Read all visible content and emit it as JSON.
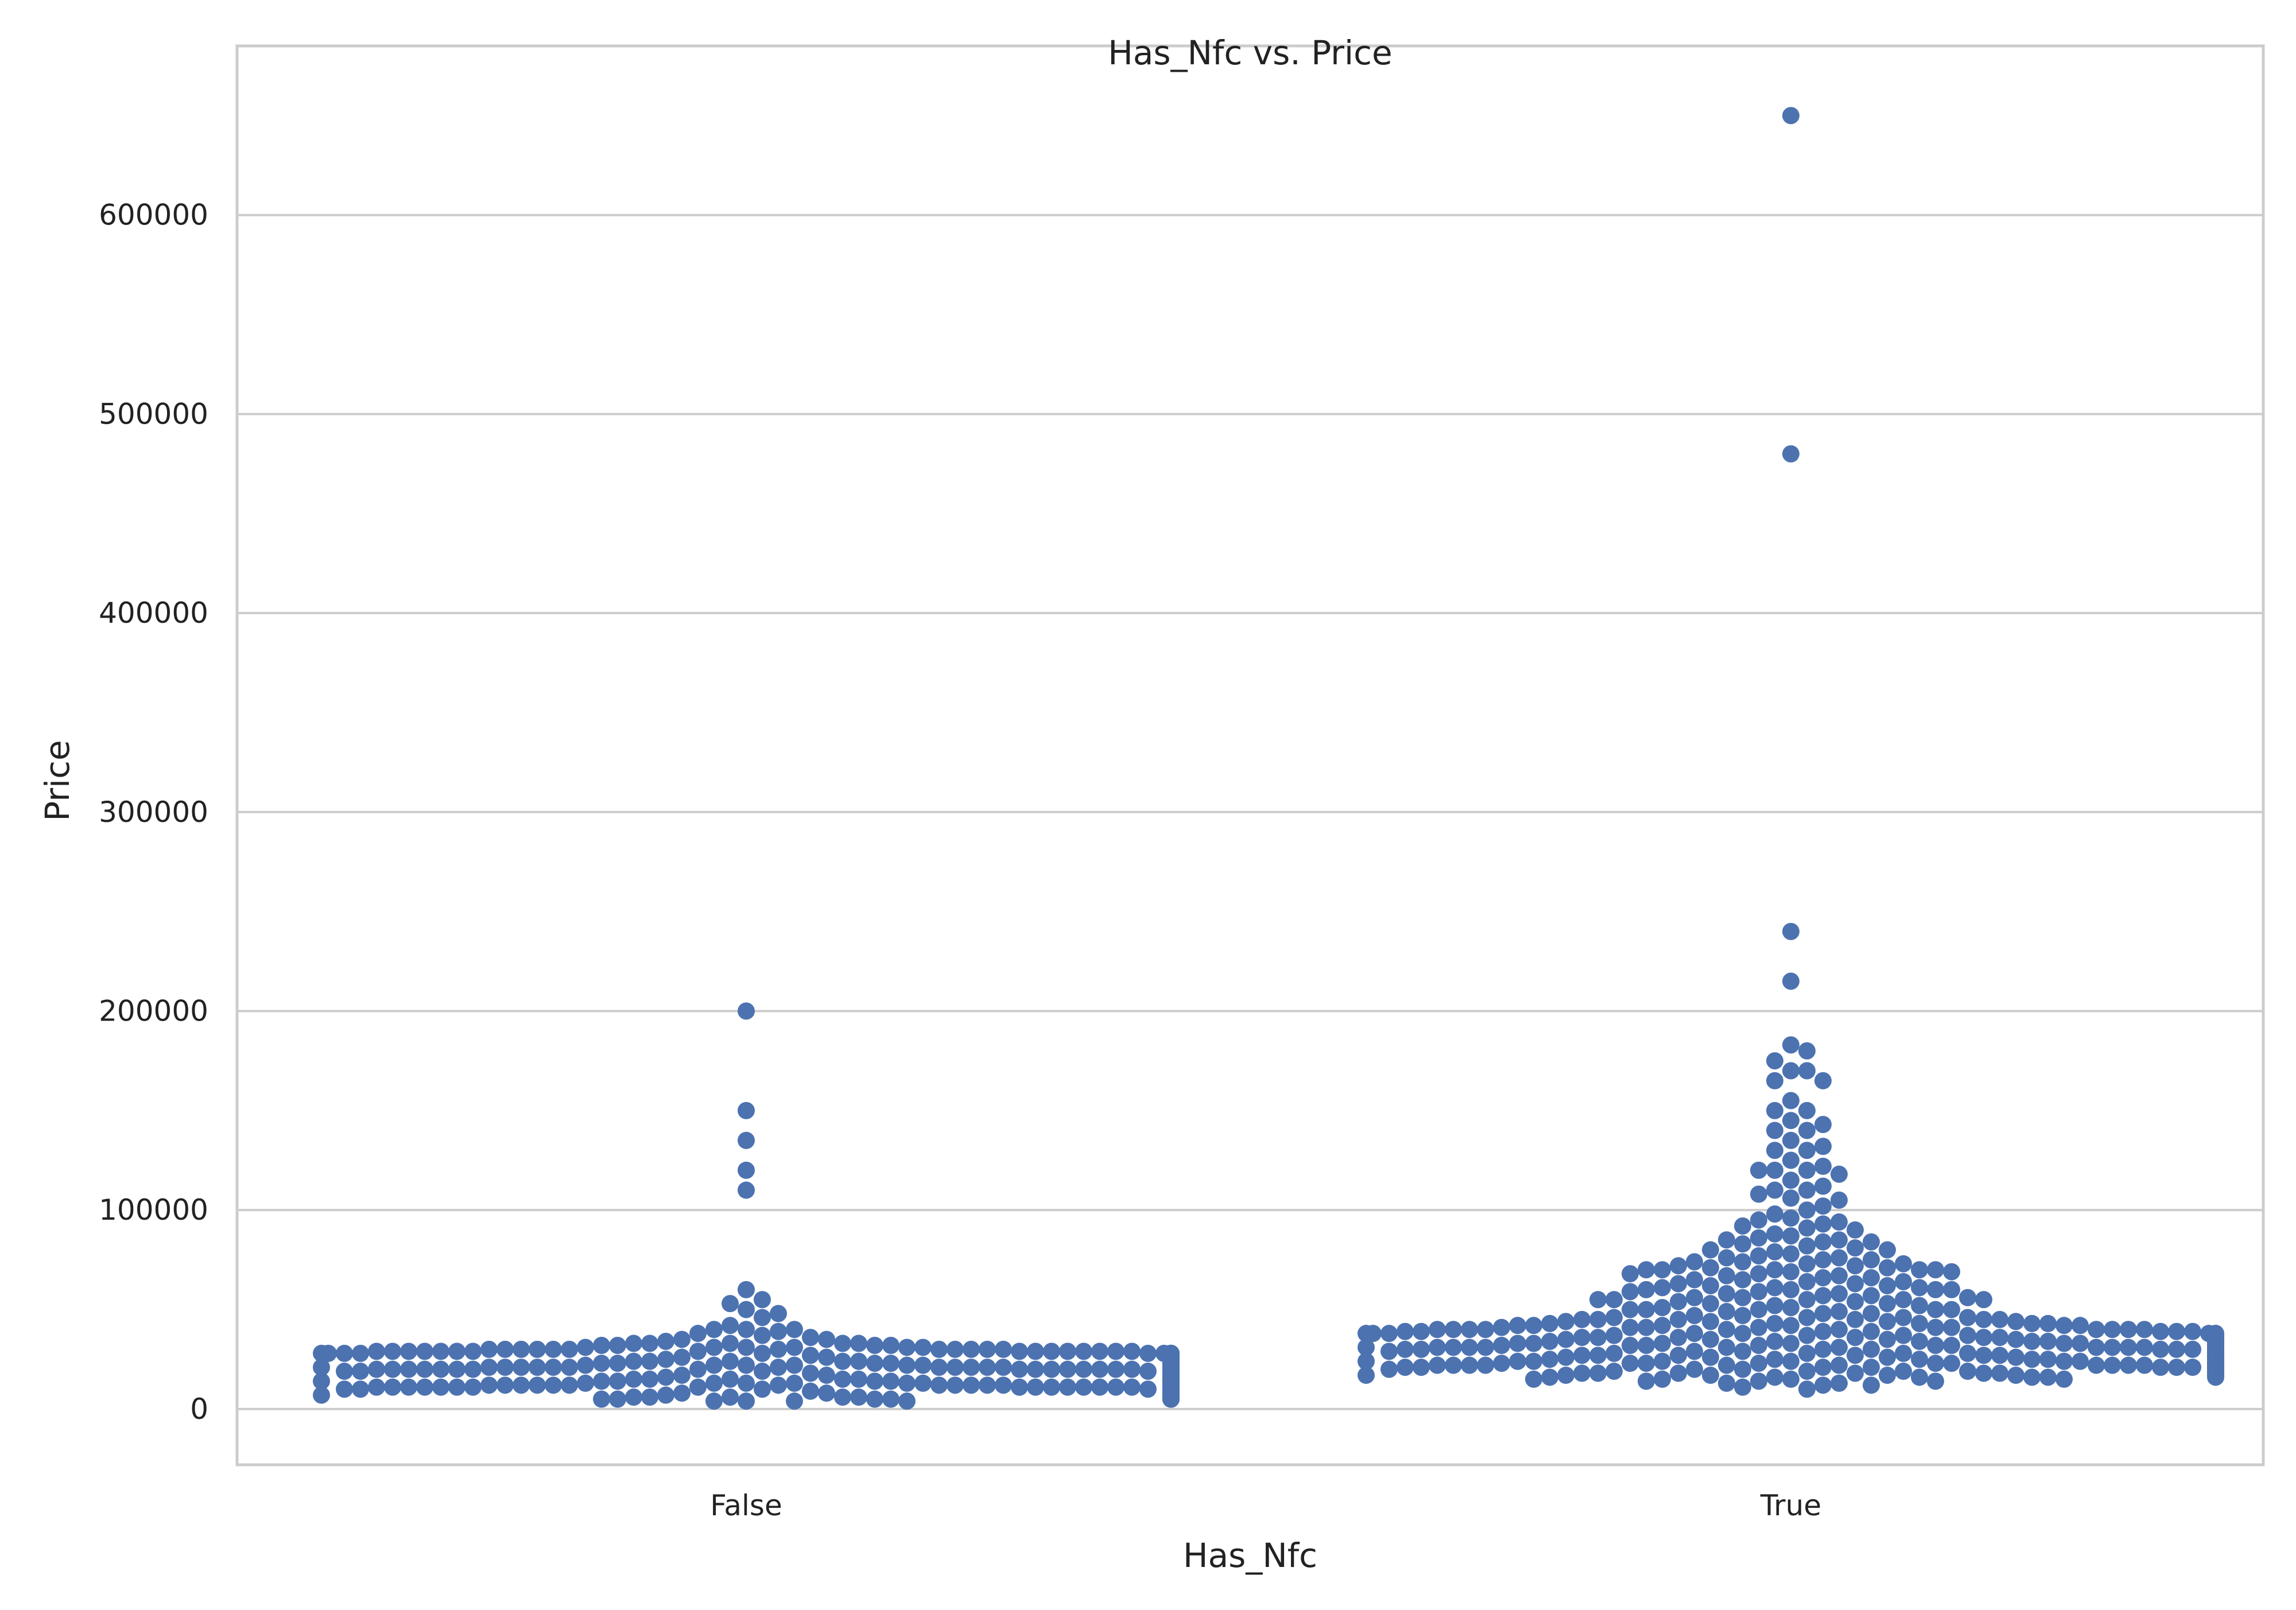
{
  "chart_data": {
    "type": "scatter",
    "subtype": "swarm",
    "title": "Has_Nfc vs. Price",
    "xlabel": "Has_Nfc",
    "ylabel": "Price",
    "categories": [
      "False",
      "True"
    ],
    "ylim": [
      -28000,
      685000
    ],
    "yticks": [
      0,
      100000,
      200000,
      300000,
      400000,
      500000,
      600000
    ],
    "ytick_labels": [
      "0",
      "100000",
      "200000",
      "300000",
      "400000",
      "500000",
      "600000"
    ],
    "grid": "horizontal",
    "legend": "none",
    "marker_color": "#4c72b0",
    "series": [
      {
        "category": "False",
        "values": [
          200000,
          150000,
          135000,
          120000,
          110000,
          60000,
          55000,
          53000,
          50000,
          48000,
          46000,
          42000,
          40000,
          40000,
          40000,
          39000,
          38000,
          37000,
          36000,
          35000,
          35000,
          34000,
          33000,
          33000,
          33000,
          33000,
          33000,
          32000,
          32000,
          32000,
          32000,
          31000,
          31000,
          31000,
          31000,
          31000,
          31000,
          30000,
          30000,
          30000,
          30000,
          30000,
          30000,
          30000,
          30000,
          30000,
          30000,
          30000,
          30000,
          29000,
          29000,
          29000,
          29000,
          29000,
          29000,
          29000,
          29000,
          29000,
          29000,
          29000,
          29000,
          29000,
          29000,
          29000,
          29000,
          28000,
          28000,
          28000,
          28000,
          28000,
          28000,
          28000,
          28000,
          28000,
          28000,
          28000,
          28000,
          28000,
          28000,
          28000,
          28000,
          27000,
          27000,
          27000,
          27000,
          27000,
          27000,
          27000,
          27000,
          27000,
          27000,
          27000,
          27000,
          27000,
          27000,
          27000,
          27000,
          26000,
          26000,
          26000,
          26000,
          26000,
          26000,
          26000,
          26000,
          26000,
          26000,
          26000,
          26000,
          26000,
          26000,
          26000,
          26000,
          25000,
          25000,
          25000,
          25000,
          25000,
          25000,
          25000,
          25000,
          25000,
          25000,
          25000,
          25000,
          25000,
          25000,
          25000,
          25000,
          24000,
          24000,
          24000,
          24000,
          24000,
          24000,
          24000,
          24000,
          24000,
          24000,
          24000,
          24000,
          24000,
          24000,
          24000,
          24000,
          23000,
          23000,
          23000,
          23000,
          23000,
          23000,
          23000,
          23000,
          23000,
          23000,
          23000,
          23000,
          23000,
          23000,
          23000,
          23000,
          22000,
          22000,
          22000,
          22000,
          22000,
          22000,
          22000,
          22000,
          22000,
          22000,
          22000,
          22000,
          22000,
          22000,
          22000,
          22000,
          21000,
          21000,
          21000,
          21000,
          21000,
          21000,
          21000,
          21000,
          21000,
          21000,
          21000,
          21000,
          21000,
          21000,
          21000,
          21000,
          20000,
          20000,
          20000,
          20000,
          20000,
          20000,
          20000,
          20000,
          20000,
          20000,
          20000,
          20000,
          20000,
          20000,
          20000,
          20000,
          19000,
          19000,
          19000,
          19000,
          19000,
          19000,
          19000,
          19000,
          19000,
          19000,
          19000,
          19000,
          19000,
          19000,
          19000,
          19000,
          18000,
          18000,
          18000,
          18000,
          18000,
          18000,
          18000,
          18000,
          18000,
          18000,
          18000,
          18000,
          18000,
          18000,
          18000,
          18000,
          17000,
          17000,
          17000,
          17000,
          17000,
          17000,
          17000,
          17000,
          17000,
          17000,
          17000,
          17000,
          17000,
          17000,
          17000,
          17000,
          16000,
          16000,
          16000,
          16000,
          16000,
          16000,
          16000,
          16000,
          16000,
          16000,
          16000,
          16000,
          16000,
          16000,
          16000,
          16000,
          15000,
          15000,
          15000,
          15000,
          15000,
          15000,
          15000,
          15000,
          15000,
          15000,
          15000,
          15000,
          15000,
          15000,
          15000,
          15000,
          14000,
          14000,
          14000,
          14000,
          14000,
          14000,
          14000,
          14000,
          14000,
          14000,
          14000,
          14000,
          14000,
          14000,
          14000,
          14000,
          13000,
          13000,
          13000,
          13000,
          13000,
          13000,
          13000,
          13000,
          13000,
          13000,
          13000,
          13000,
          13000,
          13000,
          13000,
          13000,
          12000,
          12000,
          12000,
          12000,
          12000,
          12000,
          12000,
          12000,
          12000,
          12000,
          12000,
          12000,
          12000,
          12000,
          12000,
          12000,
          11000,
          11000,
          11000,
          11000,
          11000,
          11000,
          11000,
          11000,
          11000,
          11000,
          11000,
          11000,
          11000,
          11000,
          11000,
          11000,
          10000,
          10000,
          10000,
          10000,
          10000,
          10000,
          10000,
          10000,
          10000,
          10000,
          10000,
          10000,
          10000,
          10000,
          10000,
          10000,
          9000,
          9000,
          9000,
          9000,
          9000,
          9000,
          9000,
          9000,
          9000,
          9000,
          9000,
          9000,
          9000,
          9000,
          9000,
          9000,
          8000,
          8000,
          8000,
          8000,
          8000,
          8000,
          8000,
          8000,
          8000,
          8000,
          8000,
          8000,
          8000,
          8000,
          8000,
          8000,
          7000,
          7000,
          7000,
          7000,
          7000,
          7000,
          7000,
          7000,
          7000,
          7000,
          7000,
          7000,
          7000,
          7000,
          7000,
          7000,
          6000,
          6000,
          6000,
          6000,
          6000,
          6000,
          6000,
          6000,
          6000,
          6000,
          6000,
          6000,
          5000,
          5000,
          5000,
          5000,
          5000,
          5000,
          5000,
          5000,
          4000,
          4000,
          4000,
          4000
        ]
      },
      {
        "category": "True",
        "values": [
          650000,
          480000,
          240000,
          215000,
          183000,
          180000,
          175000,
          170000,
          170000,
          165000,
          165000,
          155000,
          150000,
          150000,
          145000,
          143000,
          140000,
          140000,
          135000,
          132000,
          130000,
          130000,
          125000,
          122000,
          120000,
          120000,
          120000,
          118000,
          115000,
          112000,
          110000,
          110000,
          108000,
          106000,
          105000,
          102000,
          100000,
          98000,
          96000,
          95000,
          94000,
          93000,
          92000,
          91000,
          90000,
          88000,
          87000,
          86000,
          85000,
          85000,
          84000,
          84000,
          83000,
          82000,
          81000,
          80000,
          80000,
          79000,
          78000,
          77000,
          76000,
          76000,
          75000,
          75000,
          74000,
          74000,
          73000,
          73000,
          72000,
          72000,
          71000,
          71000,
          70000,
          70000,
          70000,
          70000,
          70000,
          69000,
          69000,
          68000,
          68000,
          67000,
          67000,
          66000,
          66000,
          65000,
          65000,
          64000,
          64000,
          63000,
          63000,
          62000,
          62000,
          61000,
          61000,
          61000,
          60000,
          60000,
          60000,
          60000,
          59000,
          59000,
          58000,
          58000,
          57000,
          57000,
          56000,
          56000,
          56000,
          55000,
          55000,
          55000,
          55000,
          55000,
          54000,
          54000,
          53000,
          53000,
          52000,
          52000,
          51000,
          51000,
          50000,
          50000,
          50000,
          50000,
          50000,
          49000,
          49000,
          48000,
          48000,
          47000,
          47000,
          46000,
          46000,
          46000,
          46000,
          45000,
          45000,
          45000,
          45000,
          45000,
          45000,
          44000,
          44000,
          44000,
          44000,
          43000,
          43000,
          43000,
          43000,
          43000,
          42000,
          42000,
          42000,
          42000,
          42000,
          42000,
          41000,
          41000,
          41000,
          41000,
          41000,
          41000,
          40000,
          40000,
          40000,
          40000,
          40000,
          40000,
          40000,
          40000,
          40000,
          40000,
          39000,
          39000,
          39000,
          39000,
          39000,
          39000,
          39000,
          38000,
          38000,
          38000,
          38000,
          38000,
          38000,
          38000,
          38000,
          37000,
          37000,
          37000,
          37000,
          37000,
          37000,
          37000,
          37000,
          36000,
          36000,
          36000,
          36000,
          36000,
          36000,
          36000,
          36000,
          36000,
          35000,
          35000,
          35000,
          35000,
          35000,
          35000,
          35000,
          35000,
          35000,
          35000,
          35000,
          34000,
          34000,
          34000,
          34000,
          34000,
          34000,
          34000,
          34000,
          34000,
          34000,
          34000,
          34000,
          33000,
          33000,
          33000,
          33000,
          33000,
          33000,
          33000,
          33000,
          33000,
          33000,
          33000,
          33000,
          32000,
          32000,
          32000,
          32000,
          32000,
          32000,
          32000,
          32000,
          32000,
          32000,
          32000,
          32000,
          31000,
          31000,
          31000,
          31000,
          31000,
          31000,
          31000,
          31000,
          31000,
          31000,
          31000,
          31000,
          30000,
          30000,
          30000,
          30000,
          30000,
          30000,
          30000,
          30000,
          30000,
          30000,
          30000,
          30000,
          30000,
          29000,
          29000,
          29000,
          29000,
          29000,
          29000,
          29000,
          29000,
          29000,
          29000,
          29000,
          29000,
          28000,
          28000,
          28000,
          28000,
          28000,
          28000,
          28000,
          28000,
          28000,
          28000,
          28000,
          28000,
          27000,
          27000,
          27000,
          27000,
          27000,
          27000,
          27000,
          27000,
          27000,
          27000,
          27000,
          27000,
          26000,
          26000,
          26000,
          26000,
          26000,
          26000,
          26000,
          26000,
          26000,
          26000,
          26000,
          26000,
          25000,
          25000,
          25000,
          25000,
          25000,
          25000,
          25000,
          25000,
          25000,
          25000,
          25000,
          25000,
          24000,
          24000,
          24000,
          24000,
          24000,
          24000,
          24000,
          24000,
          24000,
          24000,
          24000,
          24000,
          23000,
          23000,
          23000,
          23000,
          23000,
          23000,
          23000,
          23000,
          23000,
          23000,
          23000,
          23000,
          22000,
          22000,
          22000,
          22000,
          22000,
          22000,
          22000,
          22000,
          22000,
          22000,
          22000,
          22000,
          21000,
          21000,
          21000,
          21000,
          21000,
          21000,
          21000,
          21000,
          21000,
          21000,
          21000,
          21000,
          20000,
          20000,
          20000,
          20000,
          20000,
          20000,
          20000,
          20000,
          20000,
          20000,
          20000,
          20000,
          19000,
          19000,
          19000,
          19000,
          19000,
          19000,
          19000,
          19000,
          19000,
          19000,
          19000,
          19000,
          18000,
          18000,
          18000,
          18000,
          18000,
          18000,
          18000,
          18000,
          18000,
          18000,
          17000,
          17000,
          17000,
          17000,
          17000,
          17000,
          17000,
          17000,
          16000,
          16000,
          16000,
          16000,
          16000,
          16000,
          15000,
          15000,
          15000,
          15000,
          14000,
          14000,
          14000,
          13000,
          13000,
          12000,
          12000,
          11000,
          10000
        ]
      }
    ]
  }
}
